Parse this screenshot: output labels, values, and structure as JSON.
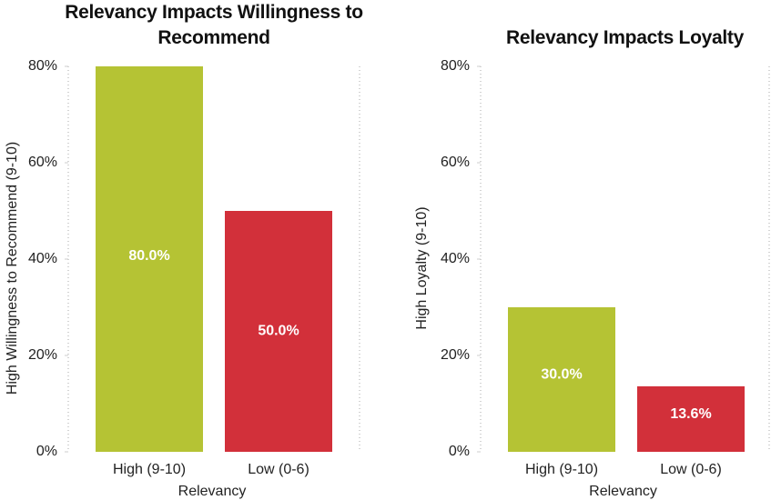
{
  "chart_data": [
    {
      "type": "bar",
      "title": "Relevancy Impacts Willingness to Recommend",
      "categories": [
        "High (9-10)",
        "Low (0-6)"
      ],
      "values": [
        80,
        50
      ],
      "value_labels": [
        "80.0%",
        "50.0%"
      ],
      "colors": [
        "#b5c334",
        "#d2303a"
      ],
      "x_label": "Relevancy",
      "y_label": "High Willingness to Recommend (9-10)",
      "ylim": [
        0,
        80
      ],
      "yticks": [
        {
          "value": 0,
          "label": "0%"
        },
        {
          "value": 20,
          "label": "20%"
        },
        {
          "value": 40,
          "label": "40%"
        },
        {
          "value": 60,
          "label": "60%"
        },
        {
          "value": 80,
          "label": "80%"
        }
      ]
    },
    {
      "type": "bar",
      "title": "Relevancy Impacts Loyalty",
      "categories": [
        "High (9-10)",
        "Low (0-6)"
      ],
      "values": [
        30,
        13.6
      ],
      "value_labels": [
        "30.0%",
        "13.6%"
      ],
      "colors": [
        "#b5c334",
        "#d2303a"
      ],
      "x_label": "Relevancy",
      "y_label": "High Loyalty (9-10)",
      "ylim": [
        0,
        80
      ],
      "yticks": [
        {
          "value": 0,
          "label": "0%"
        },
        {
          "value": 20,
          "label": "20%"
        },
        {
          "value": 40,
          "label": "40%"
        },
        {
          "value": 60,
          "label": "60%"
        },
        {
          "value": 80,
          "label": "80%"
        }
      ]
    }
  ]
}
